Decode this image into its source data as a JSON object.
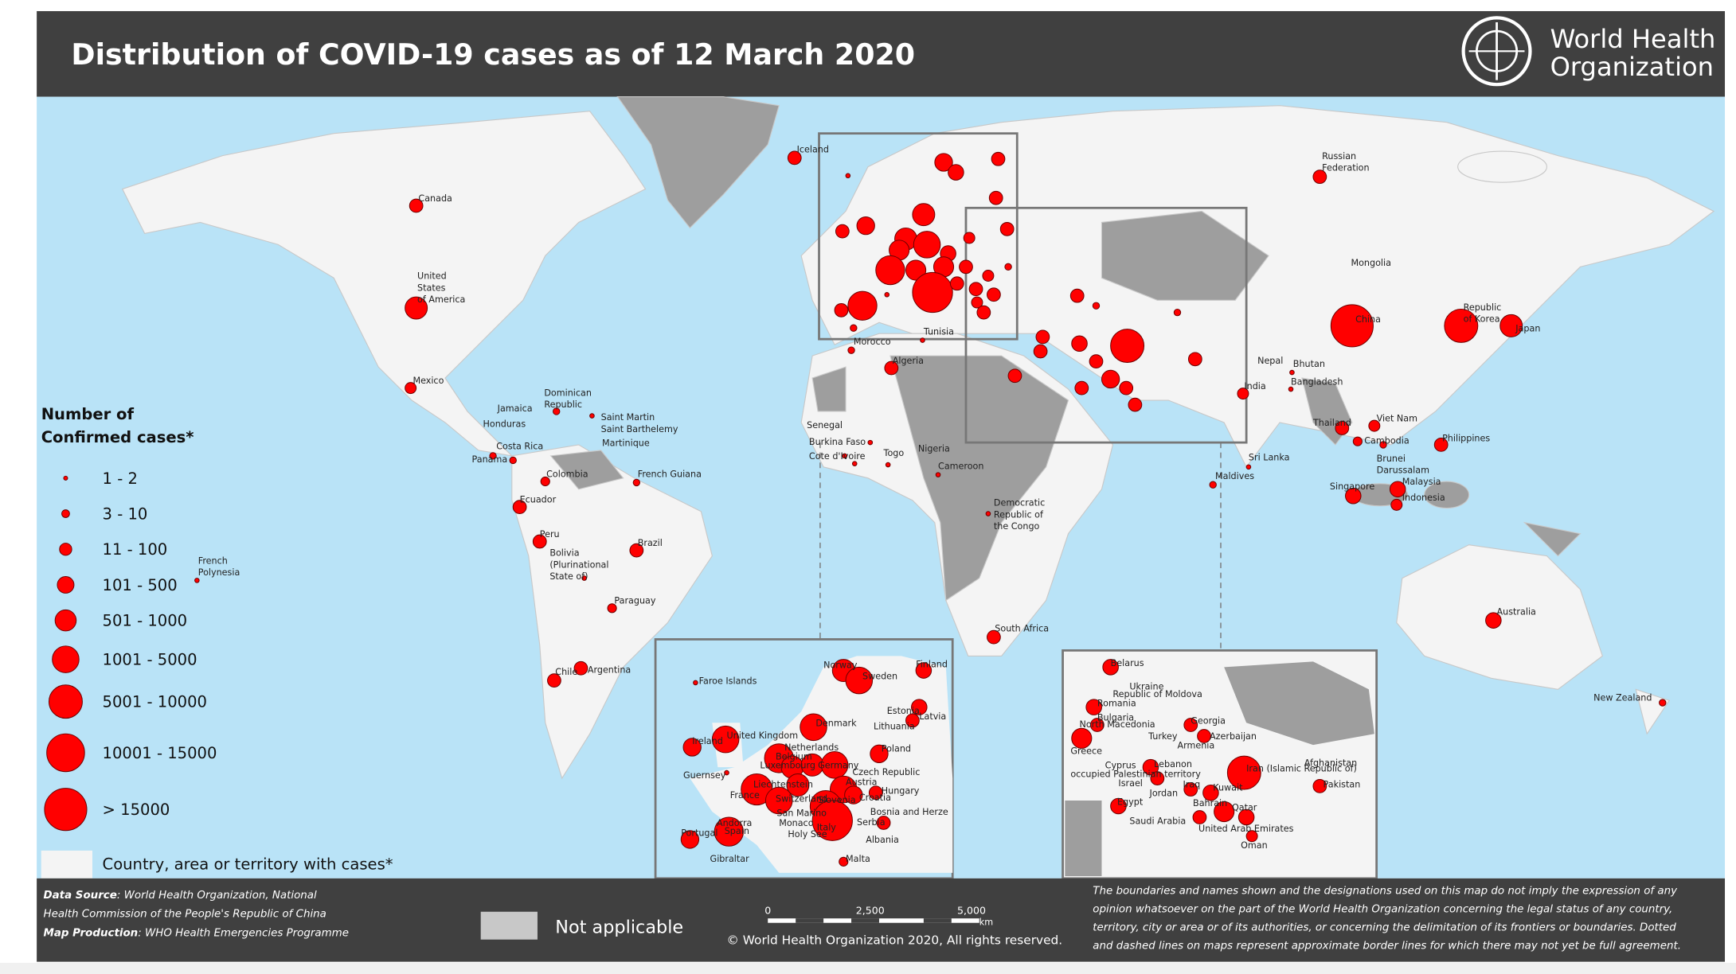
{
  "header": {
    "title": "Distribution of COVID-19  cases as of 12 March 2020",
    "org": [
      "World Health",
      "Organization"
    ]
  },
  "legend": {
    "title": [
      "Number of",
      "Confirmed cases*"
    ],
    "classes": [
      "1 - 2",
      "3 - 10",
      "11 - 100",
      "101 - 500",
      "501 - 1000",
      "1001 - 5000",
      "5001 - 10000",
      "10001 - 15000",
      "> 15000"
    ],
    "cases_area": "Country, area or territory with cases*"
  },
  "map_labels": [
    "Iceland",
    "Canada",
    [
      "United",
      "States",
      "of America"
    ],
    "Mexico",
    [
      "Russian",
      "Federation"
    ],
    "Mongolia",
    [
      "Republic",
      "of Korea"
    ],
    "Japan",
    "China",
    "Nepal",
    "Bhutan",
    "Bangladesh",
    "India",
    "Thailand",
    "Viet Nam",
    "Cambodia",
    "Philippines",
    [
      "Brunei",
      "Darussalam"
    ],
    "Malaysia",
    "Singapore",
    "Indonesia",
    "Sri Lanka",
    "Maldives",
    "Australia",
    "New Zealand",
    [
      "Dominican",
      "Republic"
    ],
    "Jamaica",
    [
      "Saint Martin",
      "Saint Barthelemy"
    ],
    "Honduras",
    "Martinique",
    "Costa Rica",
    "Panama",
    "Colombia",
    "French Guiana",
    "Ecuador",
    "Peru",
    "Brazil",
    [
      "Bolivia",
      "(Plurinational",
      "State of)"
    ],
    "Paraguay",
    [
      "French",
      "Polynesia"
    ],
    "Chile",
    "Argentina",
    "Morocco",
    "Tunisia",
    "Algeria",
    "Senegal",
    "Burkina Faso",
    "Cote d'Ivoire",
    "Togo",
    "Nigeria",
    "Cameroon",
    [
      "Democratic",
      "Republic of",
      "the Congo"
    ],
    "South Africa"
  ],
  "europe_inset_labels": [
    "Faroe Islands",
    "Norway",
    "Sweden",
    "Finland",
    "Estonia",
    "Latvia",
    "Lithuania",
    "Denmark",
    "United Kingdom",
    "Ireland",
    "Netherlands",
    "Belgium",
    "Luxembourg",
    "Germany",
    "Poland",
    "Czech Republic",
    "Guernsey",
    "Austria",
    "Hungary",
    "Liechtenstein",
    "France",
    "Switzerland",
    "Slovenia",
    "Croatia",
    "San Marino",
    "Monaco",
    "Bosnia and Herze",
    "Serbia",
    "Andorra",
    "Spain",
    "Portugal",
    "Italy",
    "Holy See",
    "Albania",
    "Gibraltar",
    "Malta"
  ],
  "middle_east_inset_labels": [
    "Belarus",
    "Ukraine",
    "Republic of Moldova",
    "Romania",
    "Bulgaria",
    "North Macedonia",
    "Georgia",
    "Turkey",
    "Azerbaijan",
    "Armenia",
    "Greece",
    "Cyprus",
    "Lebanon",
    "occupied Palestinian territory",
    "Israel",
    "Iraq",
    "Iran (Islamic Republic of)",
    "Afghanistan",
    "Pakistan",
    "Jordan",
    "Kuwait",
    "Egypt",
    "Bahrain",
    "Qatar",
    "Saudi Arabia",
    "United Arab Emirates",
    "Oman"
  ],
  "footer": {
    "source_label": "Data Source",
    "source": [
      ": World Health Organization, National",
      "Health Commission of the People's Republic of China"
    ],
    "production_label": "Map Production",
    "production": ": WHO Health Emergencies Programme",
    "not_applicable": "Not applicable",
    "scale": [
      "0",
      "2,500",
      "5,000",
      "km"
    ],
    "copyright": "© World Health Organization  2020,  All rights reserved.",
    "disclaimer": [
      "The boundaries and names shown and the designations used on this map do not imply the expression of any",
      "opinion whatsoever on the part of the World Health Organization concerning the legal status of any country,",
      "territory, city or area or of its authorities, or concerning the delimitation of its frontiers or boundaries. Dotted",
      "and dashed lines on maps represent approximate border lines for which there may not yet be full agreement."
    ]
  }
}
